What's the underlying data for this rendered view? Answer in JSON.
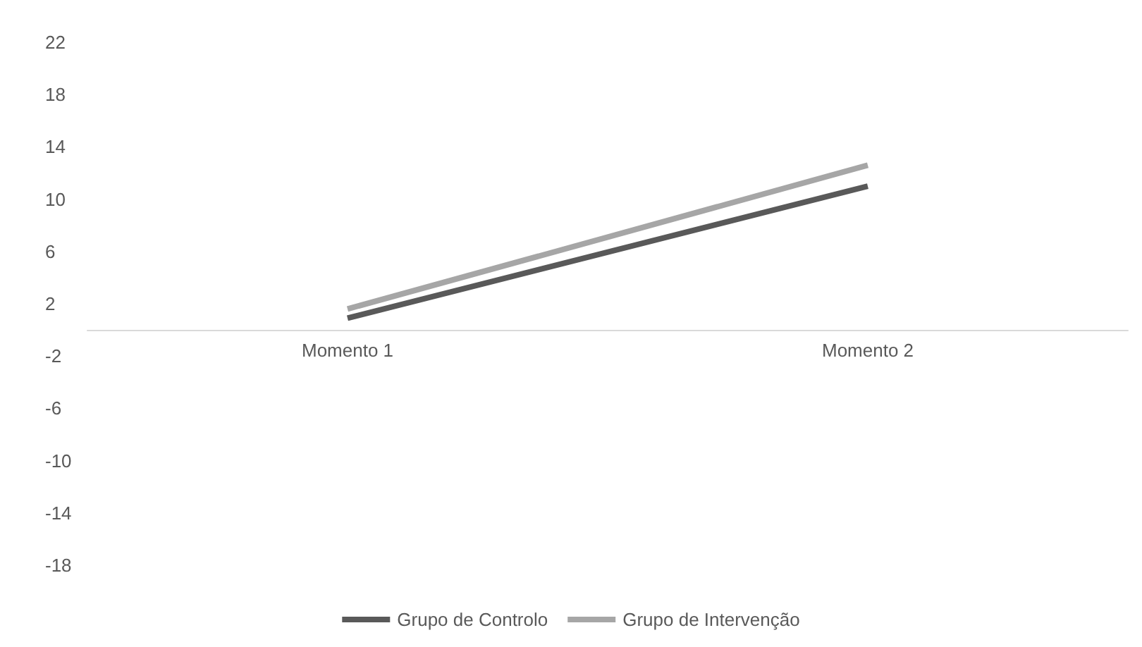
{
  "chart_data": {
    "type": "line",
    "categories": [
      "Momento 1",
      "Momento 2"
    ],
    "series": [
      {
        "name": "Grupo de Controlo",
        "color": "#595959",
        "values": [
          0.9,
          11.0
        ]
      },
      {
        "name": "Grupo de Intervenção",
        "color": "#a6a6a6",
        "values": [
          1.6,
          12.6
        ]
      }
    ],
    "ylim": [
      -18,
      22
    ],
    "yticks": [
      -18,
      -14,
      -10,
      -6,
      -2,
      2,
      6,
      10,
      14,
      18,
      22
    ],
    "grid": false,
    "legend": "bottom",
    "marker": "none",
    "line_style": "solid"
  }
}
